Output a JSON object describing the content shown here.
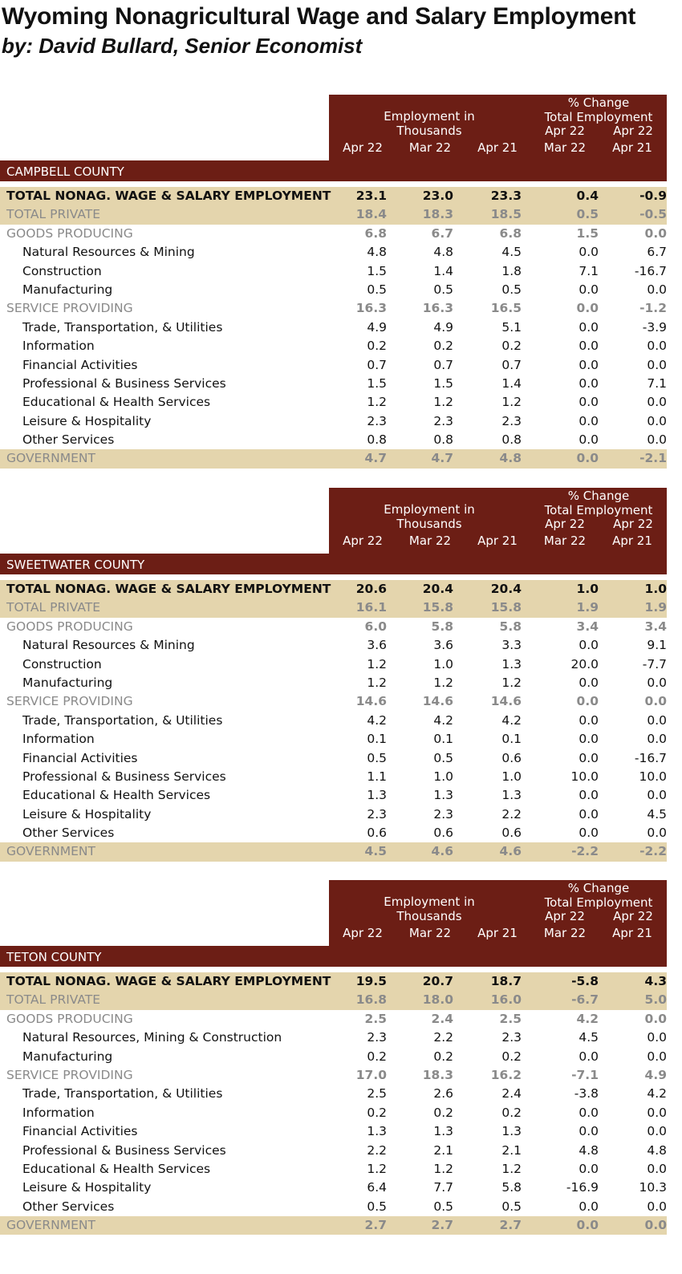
{
  "title": "Wyoming Nonagricultural Wage and Salary Employment",
  "subtitle": "by: David Bullard, Senior Economist",
  "header": {
    "emp_line1": "Employment in",
    "emp_line2": "Thousands",
    "pct_line1": "% Change",
    "pct_line2": "Total Employment",
    "pct_top1": "Apr 22",
    "pct_top2": "Apr 22",
    "cols": [
      "Apr 22",
      "Mar 22",
      "Apr 21",
      "Mar 22",
      "Apr 21"
    ]
  },
  "counties": [
    {
      "name": "CAMPBELL COUNTY",
      "rows": [
        {
          "type": "total",
          "label": "TOTAL NONAG. WAGE & SALARY EMPLOYMENT",
          "v": [
            "23.1",
            "23.0",
            "23.3",
            "0.4",
            "-0.9"
          ]
        },
        {
          "type": "private",
          "label": "TOTAL PRIVATE",
          "v": [
            "18.4",
            "18.3",
            "18.5",
            "0.5",
            "-0.5"
          ]
        },
        {
          "type": "section",
          "label": "GOODS PRODUCING",
          "v": [
            "6.8",
            "6.7",
            "6.8",
            "1.5",
            "0.0"
          ]
        },
        {
          "type": "sub",
          "label": "Natural Resources & Mining",
          "v": [
            "4.8",
            "4.8",
            "4.5",
            "0.0",
            "6.7"
          ]
        },
        {
          "type": "sub",
          "label": "Construction",
          "v": [
            "1.5",
            "1.4",
            "1.8",
            "7.1",
            "-16.7"
          ]
        },
        {
          "type": "sub",
          "label": "Manufacturing",
          "v": [
            "0.5",
            "0.5",
            "0.5",
            "0.0",
            "0.0"
          ]
        },
        {
          "type": "section",
          "label": "SERVICE PROVIDING",
          "v": [
            "16.3",
            "16.3",
            "16.5",
            "0.0",
            "-1.2"
          ]
        },
        {
          "type": "sub",
          "label": "Trade, Transportation, & Utilities",
          "v": [
            "4.9",
            "4.9",
            "5.1",
            "0.0",
            "-3.9"
          ]
        },
        {
          "type": "sub",
          "label": "Information",
          "v": [
            "0.2",
            "0.2",
            "0.2",
            "0.0",
            "0.0"
          ]
        },
        {
          "type": "sub",
          "label": "Financial Activities",
          "v": [
            "0.7",
            "0.7",
            "0.7",
            "0.0",
            "0.0"
          ]
        },
        {
          "type": "sub",
          "label": "Professional & Business Services",
          "v": [
            "1.5",
            "1.5",
            "1.4",
            "0.0",
            "7.1"
          ]
        },
        {
          "type": "sub",
          "label": "Educational & Health Services",
          "v": [
            "1.2",
            "1.2",
            "1.2",
            "0.0",
            "0.0"
          ]
        },
        {
          "type": "sub",
          "label": "Leisure & Hospitality",
          "v": [
            "2.3",
            "2.3",
            "2.3",
            "0.0",
            "0.0"
          ]
        },
        {
          "type": "sub",
          "label": "Other Services",
          "v": [
            "0.8",
            "0.8",
            "0.8",
            "0.0",
            "0.0"
          ]
        },
        {
          "type": "gov",
          "label": "GOVERNMENT",
          "v": [
            "4.7",
            "4.7",
            "4.8",
            "0.0",
            "-2.1"
          ]
        }
      ]
    },
    {
      "name": "SWEETWATER COUNTY",
      "rows": [
        {
          "type": "total",
          "label": "TOTAL NONAG. WAGE & SALARY EMPLOYMENT",
          "v": [
            "20.6",
            "20.4",
            "20.4",
            "1.0",
            "1.0"
          ]
        },
        {
          "type": "private",
          "label": "TOTAL PRIVATE",
          "v": [
            "16.1",
            "15.8",
            "15.8",
            "1.9",
            "1.9"
          ]
        },
        {
          "type": "section",
          "label": "GOODS PRODUCING",
          "v": [
            "6.0",
            "5.8",
            "5.8",
            "3.4",
            "3.4"
          ]
        },
        {
          "type": "sub",
          "label": "Natural Resources & Mining",
          "v": [
            "3.6",
            "3.6",
            "3.3",
            "0.0",
            "9.1"
          ]
        },
        {
          "type": "sub",
          "label": "Construction",
          "v": [
            "1.2",
            "1.0",
            "1.3",
            "20.0",
            "-7.7"
          ]
        },
        {
          "type": "sub",
          "label": "Manufacturing",
          "v": [
            "1.2",
            "1.2",
            "1.2",
            "0.0",
            "0.0"
          ]
        },
        {
          "type": "section",
          "label": "SERVICE PROVIDING",
          "v": [
            "14.6",
            "14.6",
            "14.6",
            "0.0",
            "0.0"
          ]
        },
        {
          "type": "sub",
          "label": "Trade, Transportation, & Utilities",
          "v": [
            "4.2",
            "4.2",
            "4.2",
            "0.0",
            "0.0"
          ]
        },
        {
          "type": "sub",
          "label": "Information",
          "v": [
            "0.1",
            "0.1",
            "0.1",
            "0.0",
            "0.0"
          ]
        },
        {
          "type": "sub",
          "label": "Financial Activities",
          "v": [
            "0.5",
            "0.5",
            "0.6",
            "0.0",
            "-16.7"
          ]
        },
        {
          "type": "sub",
          "label": "Professional & Business Services",
          "v": [
            "1.1",
            "1.0",
            "1.0",
            "10.0",
            "10.0"
          ]
        },
        {
          "type": "sub",
          "label": "Educational & Health Services",
          "v": [
            "1.3",
            "1.3",
            "1.3",
            "0.0",
            "0.0"
          ]
        },
        {
          "type": "sub",
          "label": "Leisure & Hospitality",
          "v": [
            "2.3",
            "2.3",
            "2.2",
            "0.0",
            "4.5"
          ]
        },
        {
          "type": "sub",
          "label": "Other Services",
          "v": [
            "0.6",
            "0.6",
            "0.6",
            "0.0",
            "0.0"
          ]
        },
        {
          "type": "gov",
          "label": "GOVERNMENT",
          "v": [
            "4.5",
            "4.6",
            "4.6",
            "-2.2",
            "-2.2"
          ]
        }
      ]
    },
    {
      "name": "TETON COUNTY",
      "rows": [
        {
          "type": "total",
          "label": "TOTAL NONAG. WAGE & SALARY EMPLOYMENT",
          "v": [
            "19.5",
            "20.7",
            "18.7",
            "-5.8",
            "4.3"
          ]
        },
        {
          "type": "private",
          "label": "TOTAL PRIVATE",
          "v": [
            "16.8",
            "18.0",
            "16.0",
            "-6.7",
            "5.0"
          ]
        },
        {
          "type": "section",
          "label": "GOODS PRODUCING",
          "v": [
            "2.5",
            "2.4",
            "2.5",
            "4.2",
            "0.0"
          ]
        },
        {
          "type": "sub",
          "label": "Natural Resources, Mining & Construction",
          "v": [
            "2.3",
            "2.2",
            "2.3",
            "4.5",
            "0.0"
          ]
        },
        {
          "type": "sub",
          "label": "Manufacturing",
          "v": [
            "0.2",
            "0.2",
            "0.2",
            "0.0",
            "0.0"
          ]
        },
        {
          "type": "section",
          "label": "SERVICE PROVIDING",
          "v": [
            "17.0",
            "18.3",
            "16.2",
            "-7.1",
            "4.9"
          ]
        },
        {
          "type": "sub",
          "label": "Trade, Transportation, & Utilities",
          "v": [
            "2.5",
            "2.6",
            "2.4",
            "-3.8",
            "4.2"
          ]
        },
        {
          "type": "sub",
          "label": "Information",
          "v": [
            "0.2",
            "0.2",
            "0.2",
            "0.0",
            "0.0"
          ]
        },
        {
          "type": "sub",
          "label": "Financial Activities",
          "v": [
            "1.3",
            "1.3",
            "1.3",
            "0.0",
            "0.0"
          ]
        },
        {
          "type": "sub",
          "label": "Professional & Business Services",
          "v": [
            "2.2",
            "2.1",
            "2.1",
            "4.8",
            "4.8"
          ]
        },
        {
          "type": "sub",
          "label": "Educational & Health Services",
          "v": [
            "1.2",
            "1.2",
            "1.2",
            "0.0",
            "0.0"
          ]
        },
        {
          "type": "sub",
          "label": "Leisure & Hospitality",
          "v": [
            "6.4",
            "7.7",
            "5.8",
            "-16.9",
            "10.3"
          ]
        },
        {
          "type": "sub",
          "label": "Other Services",
          "v": [
            "0.5",
            "0.5",
            "0.5",
            "0.0",
            "0.0"
          ]
        },
        {
          "type": "gov",
          "label": "GOVERNMENT",
          "v": [
            "2.7",
            "2.7",
            "2.7",
            "0.0",
            "0.0"
          ]
        }
      ]
    }
  ]
}
